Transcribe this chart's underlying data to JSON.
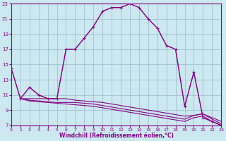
{
  "xlabel": "Windchill (Refroidissement éolien,°C)",
  "bg_color": "#cce8f0",
  "line_color": "#880088",
  "grid_color": "#99bbcc",
  "xlim": [
    0,
    23
  ],
  "ylim": [
    7,
    23
  ],
  "xticks": [
    0,
    1,
    2,
    3,
    4,
    5,
    6,
    7,
    8,
    9,
    10,
    11,
    12,
    13,
    14,
    15,
    16,
    17,
    18,
    19,
    20,
    21,
    22,
    23
  ],
  "yticks": [
    7,
    9,
    11,
    13,
    15,
    17,
    19,
    21,
    23
  ],
  "main_x": [
    0,
    1,
    2,
    3,
    4,
    5,
    6,
    7,
    8,
    9,
    10,
    11,
    12,
    13,
    14,
    15,
    16,
    17,
    18,
    19,
    20,
    21,
    22,
    23
  ],
  "main_y": [
    14.5,
    10.5,
    12.0,
    11.0,
    10.5,
    10.5,
    17.0,
    17.0,
    18.5,
    20.0,
    22.0,
    22.5,
    22.5,
    23.0,
    22.5,
    21.0,
    19.8,
    17.5,
    17.0,
    9.5,
    14.0,
    8.0,
    7.5,
    7.0
  ],
  "dotted_x": [
    0,
    1,
    2,
    3,
    4,
    5,
    6,
    7,
    8,
    9,
    10,
    11,
    12,
    13,
    14,
    15,
    16,
    17,
    18,
    19,
    20,
    21,
    22,
    23
  ],
  "dotted_y": [
    14.5,
    10.5,
    12.0,
    11.0,
    10.5,
    10.5,
    17.0,
    17.0,
    18.5,
    20.0,
    22.0,
    22.5,
    22.5,
    23.0,
    22.5,
    21.0,
    19.8,
    17.5,
    17.0,
    9.5,
    14.0,
    8.0,
    7.5,
    7.0
  ],
  "flat1_x": [
    1,
    2,
    3,
    4,
    5,
    6,
    7,
    8,
    9,
    10,
    11,
    12,
    13,
    14,
    15,
    16,
    17,
    18,
    19,
    20,
    21,
    22,
    23
  ],
  "flat1_y": [
    10.5,
    10.5,
    10.5,
    10.5,
    10.5,
    10.5,
    10.3,
    10.2,
    10.1,
    10.0,
    9.8,
    9.6,
    9.4,
    9.2,
    9.0,
    8.8,
    8.6,
    8.4,
    8.2,
    8.3,
    8.5,
    8.0,
    7.5
  ],
  "flat2_x": [
    1,
    2,
    3,
    4,
    5,
    6,
    7,
    8,
    9,
    10,
    11,
    12,
    13,
    14,
    15,
    16,
    17,
    18,
    19,
    20,
    21,
    22,
    23
  ],
  "flat2_y": [
    10.5,
    10.3,
    10.2,
    10.1,
    10.0,
    10.0,
    10.0,
    9.9,
    9.8,
    9.6,
    9.4,
    9.2,
    9.0,
    8.8,
    8.6,
    8.4,
    8.2,
    8.0,
    7.8,
    8.3,
    8.5,
    7.8,
    7.2
  ],
  "flat3_x": [
    1,
    2,
    3,
    4,
    5,
    6,
    7,
    8,
    9,
    10,
    11,
    12,
    13,
    14,
    15,
    16,
    17,
    18,
    19,
    20,
    21,
    22,
    23
  ],
  "flat3_y": [
    10.5,
    10.2,
    10.1,
    10.0,
    9.9,
    9.8,
    9.7,
    9.6,
    9.5,
    9.3,
    9.1,
    8.9,
    8.7,
    8.5,
    8.3,
    8.1,
    7.9,
    7.7,
    7.5,
    8.0,
    8.2,
    7.5,
    7.0
  ]
}
